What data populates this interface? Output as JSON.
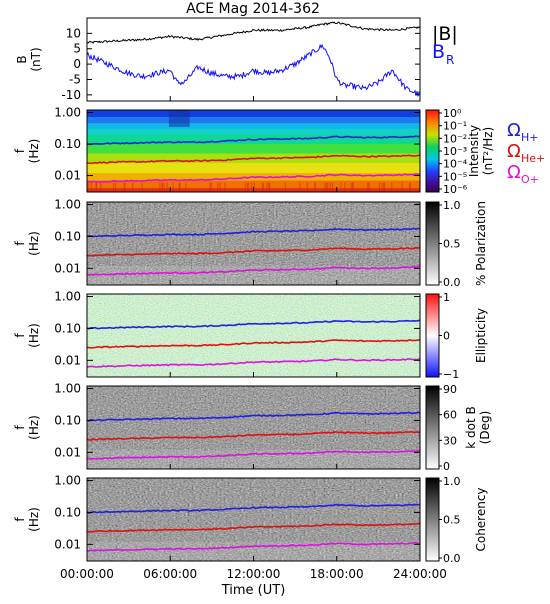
{
  "page": {
    "title": "ACE Mag 2014-362",
    "xlabel": "Time (UT)",
    "xticklabels": [
      "00:00:00",
      "06:00:00",
      "12:00:00",
      "18:00:00",
      "24:00:00"
    ]
  },
  "colors": {
    "B_total": "#000000",
    "B_R": "#1010ff",
    "H_plus": "#2020e0",
    "He_plus": "#e01010",
    "O_plus": "#e010e0"
  },
  "legend": {
    "B_total": "|B|",
    "B_R": "B",
    "B_R_sub": "R",
    "H_sym": "Ω",
    "H_sub": "H+",
    "He_sym": "Ω",
    "He_sub": "He+",
    "O_sym": "Ω",
    "O_sub": "O+"
  },
  "chart_data": [
    {
      "type": "line",
      "panel": "field",
      "ylabel": "B",
      "yunit": "(nT)",
      "ylim": [
        -12,
        15
      ],
      "yticks": [
        "10",
        "5",
        "0",
        "-5",
        "-10"
      ],
      "xlim_hours": [
        0,
        24
      ],
      "series": [
        {
          "name": "|B|",
          "x_hours": [
            0,
            2,
            4,
            6,
            7,
            8,
            10,
            12,
            14,
            16,
            17,
            18,
            19,
            20,
            22,
            24
          ],
          "values": [
            7,
            7.5,
            8,
            9,
            8.5,
            8,
            9.5,
            11,
            11,
            12,
            13,
            13.5,
            12.5,
            11.5,
            11,
            12
          ]
        },
        {
          "name": "B_R",
          "x_hours": [
            0,
            1,
            2,
            3,
            4,
            5,
            6,
            6.5,
            7,
            8,
            9,
            10,
            11,
            12,
            13,
            14,
            15,
            16,
            17,
            17.5,
            18,
            18.5,
            19,
            20,
            21,
            22,
            23,
            24
          ],
          "values": [
            3,
            1,
            -1,
            -3,
            -4,
            -3,
            -2,
            -6,
            -6,
            -1,
            -3,
            -4,
            -4,
            -2,
            -3,
            -2,
            0,
            3,
            6,
            2,
            -5,
            -7,
            -7,
            -8,
            -6,
            -2,
            -8,
            -10
          ]
        }
      ]
    },
    {
      "type": "heatmap",
      "panel": "spectrogram",
      "ylabel": "f",
      "yunit": "(Hz)",
      "scale": "log",
      "ylim": [
        0.003,
        1.2
      ],
      "yticks": [
        "1.00",
        "0.10",
        "0.01"
      ],
      "colorbar_label": "Intensity",
      "colorbar_unit": "(nT²/Hz)",
      "colorbar_ticks": [
        "10⁰",
        "10⁻¹",
        "10⁻²",
        "10⁻³",
        "10⁻⁴",
        "10⁻⁵",
        "10⁻⁶"
      ]
    },
    {
      "type": "heatmap",
      "panel": "polarization",
      "ylabel": "f",
      "yunit": "(Hz)",
      "scale": "log",
      "ylim": [
        0.003,
        1.2
      ],
      "yticks": [
        "1.00",
        "0.10",
        "0.01"
      ],
      "colorbar_label": "% Polarization",
      "colorbar_ticks": [
        "1.0",
        "0.5",
        "0.0"
      ]
    },
    {
      "type": "heatmap",
      "panel": "ellipticity",
      "ylabel": "f",
      "yunit": "(Hz)",
      "scale": "log",
      "ylim": [
        0.003,
        1.2
      ],
      "yticks": [
        "1.00",
        "0.10",
        "0.01"
      ],
      "colorbar_label": "Ellipticity",
      "colorbar_ticks": [
        "1",
        "0",
        "−1"
      ]
    },
    {
      "type": "heatmap",
      "panel": "kdotb",
      "ylabel": "f",
      "yunit": "(Hz)",
      "scale": "log",
      "ylim": [
        0.003,
        1.2
      ],
      "yticks": [
        "1.00",
        "0.10",
        "0.01"
      ],
      "colorbar_label": "k dot B",
      "colorbar_unit": "(Deg)",
      "colorbar_ticks": [
        "90",
        "60",
        "30",
        "0"
      ]
    },
    {
      "type": "heatmap",
      "panel": "coherency",
      "ylabel": "f",
      "yunit": "(Hz)",
      "scale": "log",
      "ylim": [
        0.003,
        1.2
      ],
      "yticks": [
        "1.00",
        "0.10",
        "0.01"
      ],
      "colorbar_label": "Coherency",
      "colorbar_ticks": [
        "1.0",
        "0.5",
        "0.0"
      ]
    },
    {
      "type": "line",
      "panel": "gyrofrequencies",
      "series": [
        {
          "name": "Ω_H+",
          "x_hours": [
            0,
            2,
            4,
            6,
            8,
            10,
            12,
            14,
            16,
            18,
            20,
            22,
            24
          ],
          "values": [
            0.1,
            0.105,
            0.11,
            0.115,
            0.115,
            0.125,
            0.14,
            0.145,
            0.15,
            0.17,
            0.16,
            0.165,
            0.175
          ]
        },
        {
          "name": "Ω_He+",
          "x_hours": [
            0,
            2,
            4,
            6,
            8,
            10,
            12,
            14,
            16,
            18,
            20,
            22,
            24
          ],
          "values": [
            0.025,
            0.0265,
            0.0275,
            0.029,
            0.029,
            0.031,
            0.035,
            0.036,
            0.0375,
            0.0425,
            0.04,
            0.041,
            0.044
          ]
        },
        {
          "name": "Ω_O+",
          "x_hours": [
            0,
            2,
            4,
            6,
            8,
            10,
            12,
            14,
            16,
            18,
            20,
            22,
            24
          ],
          "values": [
            0.0063,
            0.0066,
            0.0069,
            0.0072,
            0.0072,
            0.0078,
            0.0088,
            0.009,
            0.0094,
            0.0106,
            0.01,
            0.0103,
            0.011
          ]
        }
      ]
    }
  ]
}
